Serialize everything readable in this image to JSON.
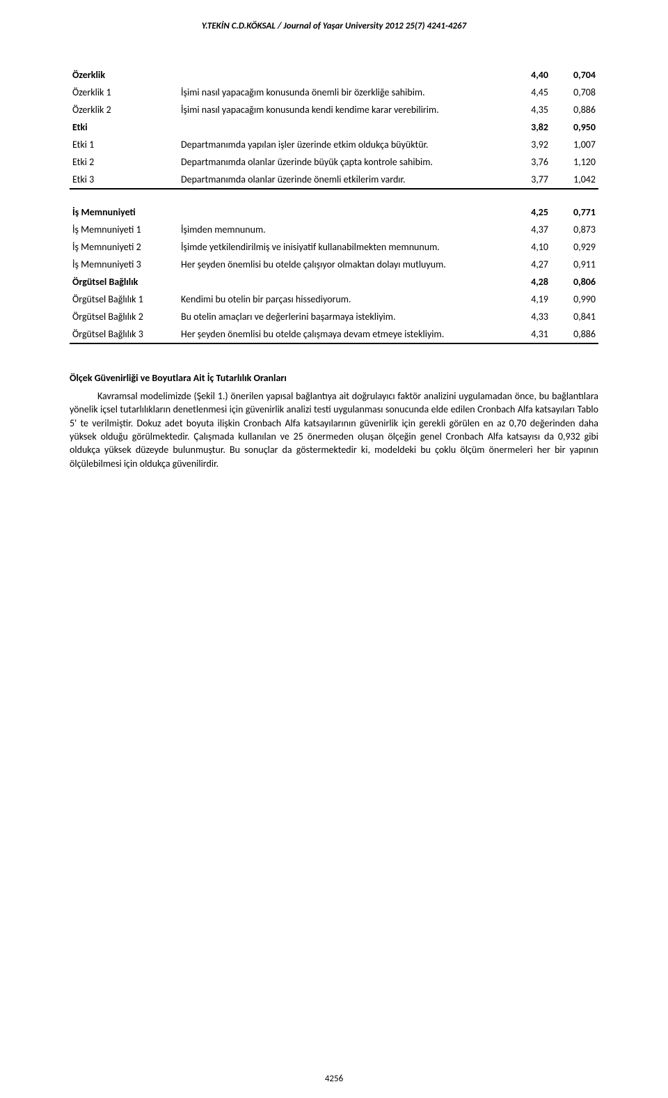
{
  "header": "Y.TEKİN C.D.KÖKSAL / Journal of Yaşar University 2012 25(7) 4241-4267",
  "page_number": "4256",
  "table": {
    "rows": [
      {
        "type": "section",
        "label": "Özerklik",
        "desc": "",
        "v1": "4,40",
        "v2": "0,704"
      },
      {
        "type": "item",
        "label": "Özerklik 1",
        "desc": "İşimi nasıl yapacağım konusunda önemli bir özerkliğe sahibim.",
        "v1": "4,45",
        "v2": "0,708"
      },
      {
        "type": "item",
        "label": "Özerklik 2",
        "desc": "İşimi nasıl yapacağım konusunda kendi kendime karar verebilirim.",
        "v1": "4,35",
        "v2": "0,886"
      },
      {
        "type": "section",
        "label": "Etki",
        "desc": "",
        "v1": "3,82",
        "v2": "0,950"
      },
      {
        "type": "item",
        "label": "Etki 1",
        "desc": "Departmanımda yapılan işler üzerinde etkim oldukça büyüktür.",
        "v1": "3,92",
        "v2": "1,007"
      },
      {
        "type": "item",
        "label": "Etki 2",
        "desc": "Departmanımda olanlar üzerinde büyük çapta kontrole sahibim.",
        "v1": "3,76",
        "v2": "1,120"
      },
      {
        "type": "item",
        "label": "Etki 3",
        "desc": "Departmanımda olanlar üzerinde önemli etkilerim vardır.",
        "v1": "3,77",
        "v2": "1,042"
      }
    ],
    "rows2": [
      {
        "type": "section",
        "label": "İş Memnuniyeti",
        "desc": "",
        "v1": "4,25",
        "v2": "0,771"
      },
      {
        "type": "item",
        "label": "İş Memnuniyeti 1",
        "desc": "İşimden memnunum.",
        "v1": "4,37",
        "v2": "0,873"
      },
      {
        "type": "item",
        "label": "İş Memnuniyeti 2",
        "desc": "İşimde yetkilendirilmiş ve inisiyatif kullanabilmekten memnunum.",
        "v1": "4,10",
        "v2": "0,929"
      },
      {
        "type": "item",
        "label": "İş Memnuniyeti 3",
        "desc": "Her şeyden önemlisi bu otelde çalışıyor olmaktan dolayı mutluyum.",
        "v1": "4,27",
        "v2": "0,911"
      },
      {
        "type": "section",
        "label": "Örgütsel Bağlılık",
        "desc": "",
        "v1": "4,28",
        "v2": "0,806"
      },
      {
        "type": "item",
        "label": "Örgütsel Bağlılık 1",
        "desc": "Kendimi bu otelin bir parçası hissediyorum.",
        "v1": "4,19",
        "v2": "0,990"
      },
      {
        "type": "item",
        "label": "Örgütsel Bağlılık 2",
        "desc": "Bu otelin amaçları ve değerlerini başarmaya istekliyim.",
        "v1": "4,33",
        "v2": "0,841"
      },
      {
        "type": "item",
        "label": "Örgütsel Bağlılık 3",
        "desc": "Her şeyden önemlisi bu otelde çalışmaya devam etmeye istekliyim.",
        "v1": "4,31",
        "v2": "0,886"
      }
    ]
  },
  "section_heading": "Ölçek Güvenirliği ve Boyutlara Ait İç Tutarlılık Oranları",
  "paragraph": "Kavramsal modelimizde (Şekil 1.) önerilen yapısal bağlantıya ait doğrulayıcı faktör analizini uygulamadan önce, bu bağlantılara yönelik içsel tutarlılıkların denetlenmesi için güvenirlik analizi testi uygulanması sonucunda elde edilen Cronbach Alfa katsayıları Tablo 5' te verilmiştir. Dokuz adet boyuta ilişkin Cronbach Alfa katsayılarının güvenirlik için gerekli görülen en az 0,70 değerinden daha yüksek olduğu görülmektedir. Çalışmada kullanılan ve 25 önermeden oluşan ölçeğin genel Cronbach Alfa katsayısı da 0,932 gibi oldukça yüksek düzeyde bulunmuştur. Bu sonuçlar da göstermektedir ki, modeldeki bu çoklu ölçüm önermeleri her bir yapının ölçülebilmesi için oldukça güvenilirdir."
}
